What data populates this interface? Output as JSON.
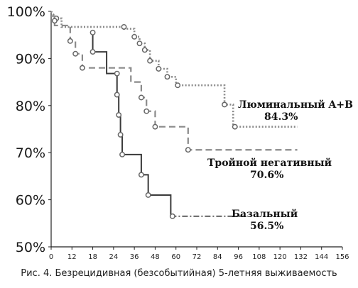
{
  "chart_data": {
    "type": "line",
    "title": "",
    "xlabel": "",
    "ylabel": "",
    "xlim": [
      0,
      156
    ],
    "ylim": [
      50,
      100
    ],
    "x_ticks": [
      "0",
      "12",
      "18",
      "24",
      "36",
      "48",
      "60",
      "72",
      "84",
      "96",
      "108",
      "120",
      "132",
      "144",
      "156"
    ],
    "x_tick_values": [
      0,
      12,
      18,
      24,
      36,
      48,
      60,
      72,
      84,
      96,
      108,
      120,
      132,
      144,
      156
    ],
    "y_ticks": [
      "100%",
      "90%",
      "80%",
      "70%",
      "60%",
      "50%"
    ],
    "y_tick_values": [
      100,
      90,
      80,
      70,
      60,
      50
    ],
    "grid": false,
    "series": [
      {
        "name": "Люминальный A+B",
        "final_label": "84.3%",
        "style": "dotted",
        "color": "#8a8a8a",
        "steps": [
          [
            0,
            100
          ],
          [
            3,
            98.5
          ],
          [
            6,
            98.5
          ],
          [
            6,
            96.7
          ],
          [
            30,
            96.7
          ],
          [
            30,
            96.3
          ],
          [
            36,
            96.3
          ],
          [
            36,
            94.6
          ],
          [
            39,
            94.6
          ],
          [
            39,
            93.2
          ],
          [
            42,
            93.2
          ],
          [
            42,
            91.8
          ],
          [
            45,
            91.8
          ],
          [
            45,
            89.5
          ],
          [
            50,
            89.5
          ],
          [
            50,
            87.8
          ],
          [
            55,
            87.8
          ],
          [
            55,
            86.1
          ],
          [
            60,
            86.1
          ],
          [
            60,
            84.3
          ],
          [
            88,
            84.3
          ],
          [
            88,
            80.2
          ],
          [
            93,
            80.2
          ],
          [
            93,
            75.5
          ],
          [
            130,
            75.5
          ]
        ],
        "markers": [
          [
            3,
            98.5
          ],
          [
            30,
            96.7
          ],
          [
            36,
            94.6
          ],
          [
            39,
            93.2
          ],
          [
            42,
            91.8
          ],
          [
            45,
            89.5
          ],
          [
            50,
            87.8
          ],
          [
            55,
            86.1
          ],
          [
            61,
            84.3
          ],
          [
            88,
            80.2
          ],
          [
            94,
            75.5
          ]
        ]
      },
      {
        "name": "Тройной негативный",
        "final_label": "70.6%",
        "style": "dashed",
        "color": "#8a8a8a",
        "steps": [
          [
            0,
            99
          ],
          [
            2,
            99
          ],
          [
            2,
            97
          ],
          [
            11,
            97
          ],
          [
            11,
            93.7
          ],
          [
            13,
            93.7
          ],
          [
            13,
            91
          ],
          [
            15,
            91
          ],
          [
            15,
            88
          ],
          [
            34,
            88
          ],
          [
            34,
            85
          ],
          [
            40,
            85
          ],
          [
            40,
            81.7
          ],
          [
            43,
            81.7
          ],
          [
            43,
            78.8
          ],
          [
            48,
            78.8
          ],
          [
            48,
            75.5
          ],
          [
            67,
            75.5
          ],
          [
            67,
            70.6
          ],
          [
            130,
            70.6
          ]
        ],
        "markers": [
          [
            2,
            98
          ],
          [
            11,
            93.7
          ],
          [
            13,
            91
          ],
          [
            15,
            88
          ],
          [
            40,
            81.7
          ],
          [
            43,
            78.8
          ],
          [
            48,
            75.5
          ],
          [
            67,
            70.6
          ]
        ]
      },
      {
        "name": "Базальный",
        "final_label": "56.5%",
        "style": "solid-then-dashdot",
        "color": "#444444",
        "steps": [
          [
            18,
            95.5
          ],
          [
            18,
            91.4
          ],
          [
            22,
            91.4
          ],
          [
            22,
            86.8
          ],
          [
            26,
            86.8
          ],
          [
            26,
            82.3
          ],
          [
            27,
            82.3
          ],
          [
            27,
            78
          ],
          [
            28,
            78
          ],
          [
            28,
            73.8
          ],
          [
            29,
            73.8
          ],
          [
            29,
            69.6
          ],
          [
            40,
            69.6
          ],
          [
            40,
            65.3
          ],
          [
            44,
            65.3
          ],
          [
            44,
            61
          ],
          [
            57,
            61
          ],
          [
            57,
            56.5
          ],
          [
            100,
            56.5
          ]
        ],
        "markers": [
          [
            18,
            95.5
          ],
          [
            18,
            91.4
          ],
          [
            26,
            86.8
          ],
          [
            26,
            82.3
          ],
          [
            27,
            78
          ],
          [
            28,
            73.8
          ],
          [
            29,
            69.6
          ],
          [
            40,
            65.3
          ],
          [
            44,
            61
          ],
          [
            58,
            56.5
          ]
        ]
      }
    ]
  },
  "labels": {
    "luminal_name": "Люминальный A+B",
    "luminal_value": "84.3%",
    "triple_name": "Тройной негативный",
    "triple_value": "70.6%",
    "basal_name": "Базальный",
    "basal_value": "56.5%"
  },
  "caption": "Рис. 4. Безрецидивная (безсобытийная) 5-летняя выживаемость"
}
